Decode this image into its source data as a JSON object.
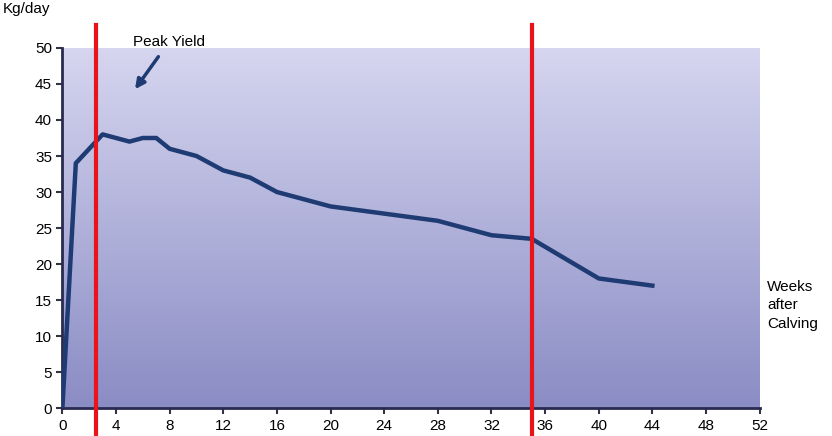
{
  "chart_data": {
    "type": "line",
    "y_label": "Kg/day",
    "x_label": "Weeks after Calving",
    "x": [
      0,
      1,
      3,
      5,
      6,
      7,
      8,
      10,
      12,
      14,
      16,
      20,
      24,
      28,
      32,
      35,
      40,
      44
    ],
    "values": [
      0,
      34,
      38,
      37,
      37.5,
      37.5,
      36,
      35,
      33,
      32,
      30,
      28,
      27,
      26,
      24,
      23.5,
      18,
      17
    ],
    "color": "#1f3b73",
    "xlim": [
      0,
      52
    ],
    "xticks": [
      0,
      4,
      8,
      12,
      16,
      20,
      24,
      28,
      32,
      36,
      40,
      44,
      48,
      52
    ],
    "ylim": [
      0,
      50
    ],
    "yticks": [
      0,
      5,
      10,
      15,
      20,
      25,
      30,
      35,
      40,
      45,
      50
    ],
    "grid": false,
    "annotations": [
      {
        "text": "Peak Yield",
        "x": 3,
        "y": 38
      }
    ],
    "reference_lines": {
      "x": [
        2.5,
        35
      ],
      "color": "#e8131b"
    }
  }
}
